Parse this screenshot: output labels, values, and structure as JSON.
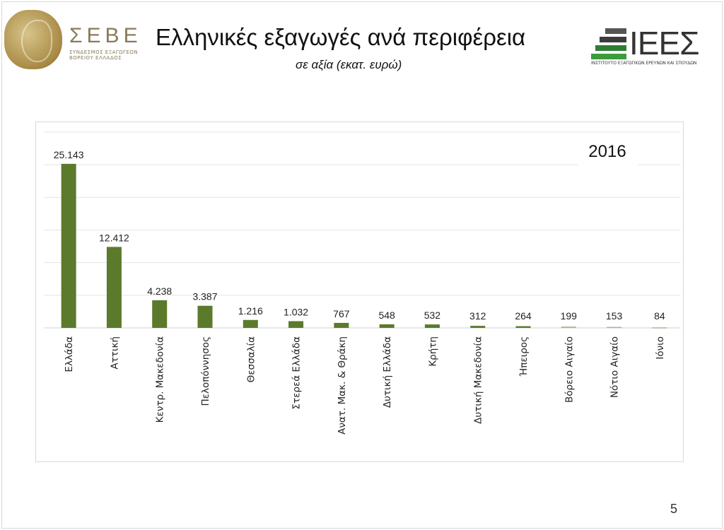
{
  "header": {
    "title": "Ελληνικές εξαγωγές ανά περιφέρεια",
    "subtitle": "σε αξία (εκατ. ευρώ)",
    "logo_left": {
      "name": "ΣΕΒΕ",
      "subtitle_line1": "ΣΥΝΔΕΣΜΟΣ ΕΞΑΓΩΓΕΩΝ",
      "subtitle_line2": "ΒΟΡΕΙΟΥ ΕΛΛΑΔΟΣ"
    },
    "logo_right": {
      "name": "ΙΕΕΣ",
      "subtitle": "ΙΝΣΤΙΤΟΥΤΟ ΕΞΑΓΩΓΙΚΩΝ ΕΡΕΥΝΩΝ ΚΑΙ ΣΠΟΥΔΩΝ"
    }
  },
  "page_number": "5",
  "chart_data": {
    "type": "bar",
    "title": "",
    "annotation": "2016",
    "xlabel": "",
    "ylabel": "",
    "ylim": [
      0,
      30000
    ],
    "grid": true,
    "bar_color": "#5b7a2c",
    "faded_bar_color": "#a9b794",
    "categories": [
      "Ελλάδα",
      "Αττική",
      "Κεντρ. Μακεδονία",
      "Πελοπόννησος",
      "Θεσσαλία",
      "Στερεά Ελλάδα",
      "Ανατ. Μακ. & Θράκη",
      "Δυτική Ελλάδα",
      "Κρήτη",
      "Δυτική Μακεδονία",
      "Ήπειρος",
      "Βόρειο Αιγαίο",
      "Νότιο Αιγαίο",
      "Ιόνιο"
    ],
    "values": [
      25143,
      12412,
      4238,
      3387,
      1216,
      1032,
      767,
      548,
      532,
      312,
      264,
      199,
      153,
      84
    ],
    "data_labels": [
      "25.143",
      "12.412",
      "4.238",
      "3.387",
      "1.216",
      "1.032",
      "767",
      "548",
      "532",
      "312",
      "264",
      "199",
      "153",
      "84"
    ]
  }
}
